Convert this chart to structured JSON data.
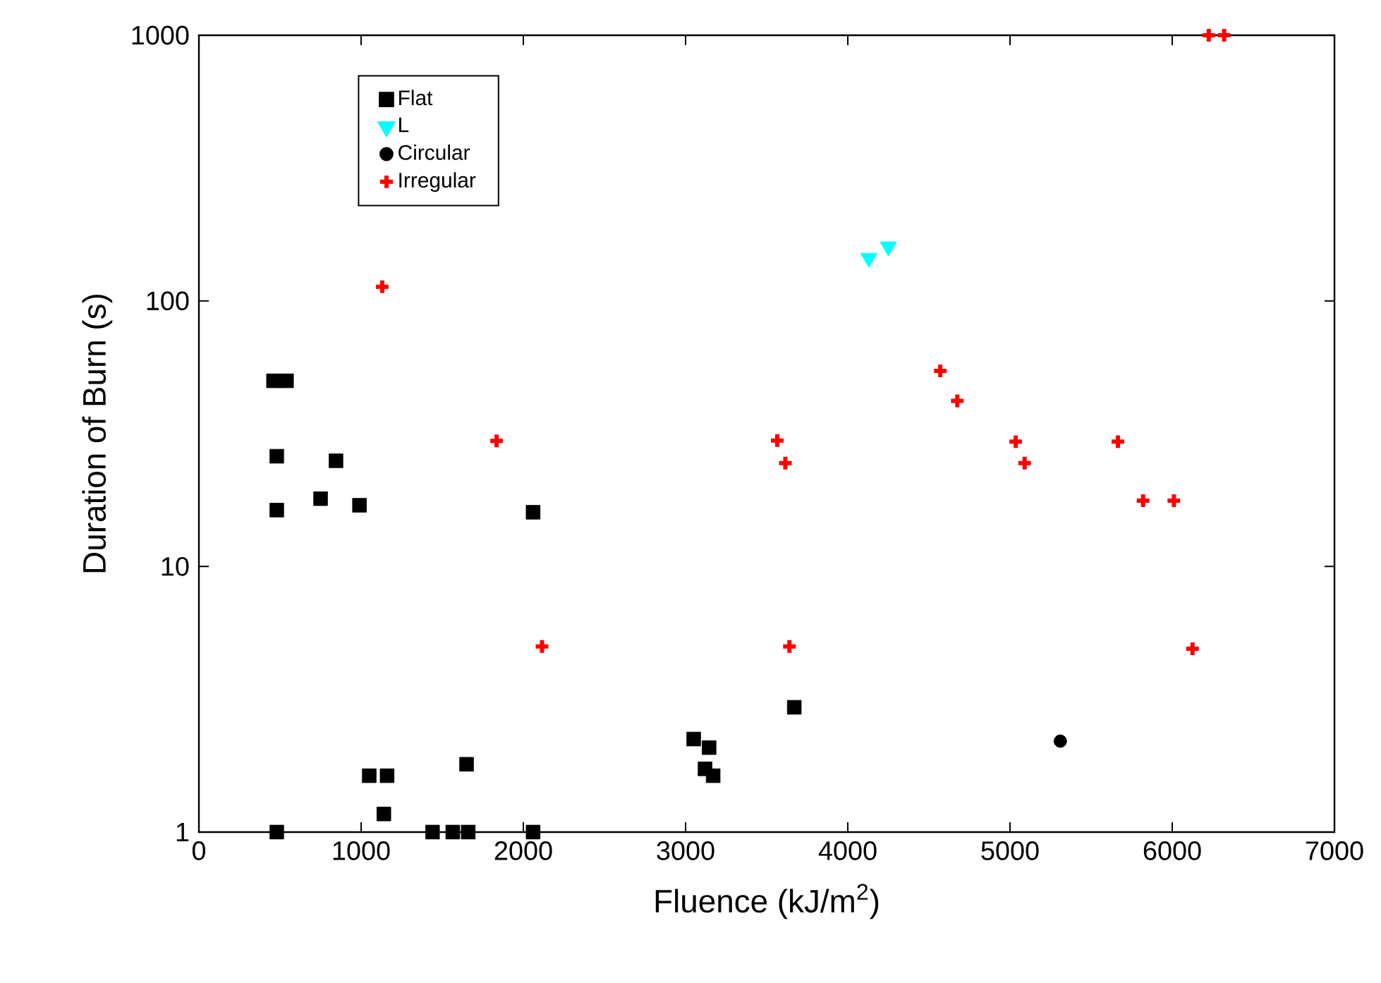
{
  "chart_data": {
    "type": "scatter",
    "xlabel": "Fluence (kJ/m$^{2}$)",
    "ylabel": "Duration of Burn (s)",
    "xlim": [
      0,
      7000
    ],
    "xticks": [
      0,
      1000,
      2000,
      3000,
      4000,
      5000,
      6000,
      7000
    ],
    "ylim": [
      1,
      1000
    ],
    "yticks": [
      1,
      10,
      100,
      1000
    ],
    "log": "y",
    "grid": false,
    "legend": "top left",
    "series": [
      {
        "name": "Flat",
        "color": "#000000",
        "marker": "square",
        "x": [
          460,
          540,
          480,
          480,
          750,
          845,
          990,
          2060,
          1050,
          1160,
          1140,
          1650,
          1440,
          1565,
          1660,
          2060,
          480,
          3050,
          3145,
          3120,
          3170,
          3670
        ],
        "values": [
          50,
          50,
          26,
          16.3,
          18,
          25,
          17,
          16,
          1.63,
          1.63,
          1.17,
          1.8,
          1,
          1,
          1,
          1,
          1,
          2.24,
          2.08,
          1.73,
          1.63,
          2.95
        ]
      },
      {
        "name": "L",
        "color": "#00ffff",
        "marker": "triangle",
        "x": [
          4130,
          4250
        ],
        "values": [
          145,
          160
        ]
      },
      {
        "name": "Circular",
        "color": "#000000",
        "marker": "circle",
        "x": [
          5310
        ],
        "values": [
          2.2
        ]
      },
      {
        "name": "Irregular",
        "color": "#ff0000",
        "marker": "cross",
        "x": [
          1130,
          1835,
          2115,
          3565,
          3615,
          3640,
          4570,
          4675,
          5035,
          5090,
          5665,
          5820,
          6010,
          6125,
          6225,
          6320
        ],
        "values": [
          113,
          29.7,
          5,
          29.8,
          24.5,
          5,
          54.5,
          42,
          29.5,
          24.5,
          29.5,
          17.7,
          17.7,
          4.9,
          1000,
          1000
        ]
      }
    ]
  }
}
